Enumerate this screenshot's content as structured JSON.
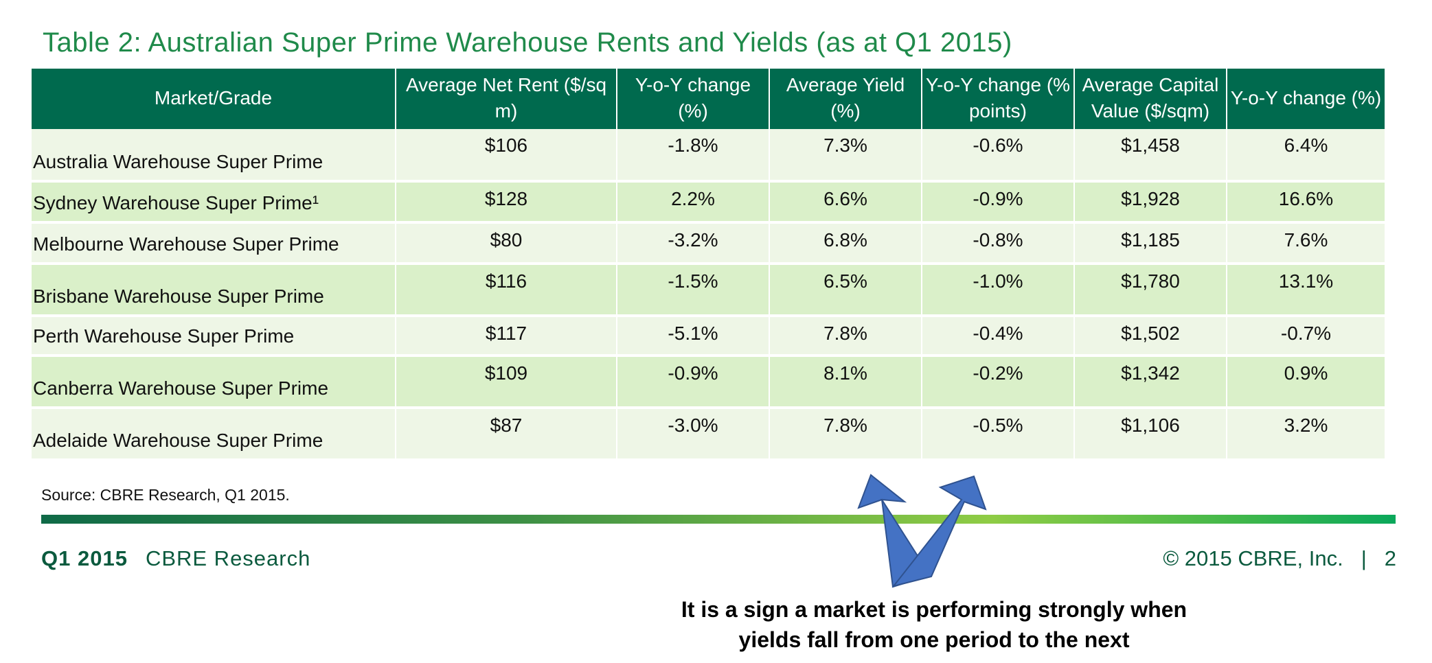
{
  "title": "Table 2: Australian Super Prime Warehouse Rents and Yields (as at Q1 2015)",
  "table": {
    "headers": [
      "Market/Grade",
      "Average Net Rent ($/sq m)",
      "Y-o-Y change (%)",
      "Average Yield (%)",
      "Y-o-Y change (% points)",
      "Average Capital Value ($/sqm)",
      "Y-o-Y change (%)"
    ],
    "rows": [
      [
        "Australia Warehouse Super Prime",
        "$106",
        "-1.8%",
        "7.3%",
        "-0.6%",
        "$1,458",
        "6.4%"
      ],
      [
        "Sydney Warehouse Super Prime¹",
        "$128",
        "2.2%",
        "6.6%",
        "-0.9%",
        "$1,928",
        "16.6%"
      ],
      [
        "Melbourne Warehouse Super Prime",
        "$80",
        "-3.2%",
        "6.8%",
        "-0.8%",
        "$1,185",
        "7.6%"
      ],
      [
        "Brisbane Warehouse Super Prime",
        "$116",
        "-1.5%",
        "6.5%",
        "-1.0%",
        "$1,780",
        "13.1%"
      ],
      [
        "Perth Warehouse Super Prime",
        "$117",
        "-5.1%",
        "7.8%",
        "-0.4%",
        "$1,502",
        "-0.7%"
      ],
      [
        "Canberra Warehouse Super Prime",
        "$109",
        "-0.9%",
        "8.1%",
        "-0.2%",
        "$1,342",
        "0.9%"
      ],
      [
        "Adelaide Warehouse Super Prime",
        "$87",
        "-3.0%",
        "7.8%",
        "-0.5%",
        "$1,106",
        "3.2%"
      ]
    ]
  },
  "source": "Source: CBRE Research, Q1 2015.",
  "footer": {
    "period": "Q1 2015",
    "brand": "CBRE Research",
    "copyright": "© 2015 CBRE, Inc.",
    "separator": "|",
    "page": "2"
  },
  "callout": {
    "line1": "It is a sign a market is performing strongly when",
    "line2": "yields fall from one period to the next"
  },
  "colors": {
    "header_bg": "#006a4e",
    "title_green": "#1f8a4a",
    "row_light": "#eef6e6",
    "row_dark": "#daf0c9",
    "arrow_blue": "#4472c4"
  }
}
